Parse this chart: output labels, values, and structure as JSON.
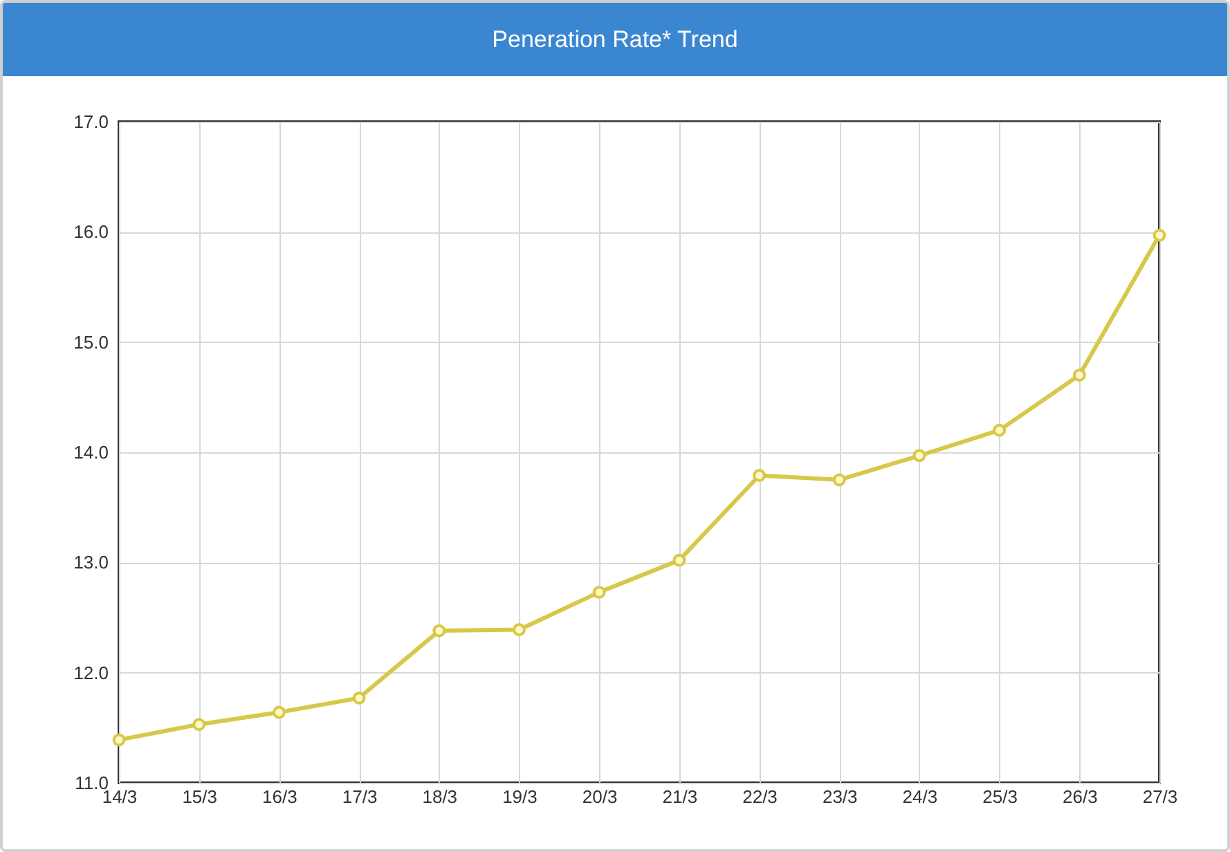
{
  "chart_data": {
    "type": "line",
    "title": "Peneration Rate* Trend",
    "categories": [
      "14/3",
      "15/3",
      "16/3",
      "17/3",
      "18/3",
      "19/3",
      "20/3",
      "21/3",
      "22/3",
      "23/3",
      "24/3",
      "25/3",
      "26/3",
      "27/3"
    ],
    "series": [
      {
        "color": "#d8c84a",
        "values": [
          11.39,
          11.53,
          11.64,
          11.77,
          12.38,
          12.39,
          12.73,
          13.02,
          13.79,
          13.75,
          13.97,
          14.2,
          14.7,
          15.97
        ]
      }
    ],
    "ylim": [
      11,
      17
    ],
    "yticks": [
      {
        "value": 11,
        "label": "11.0"
      },
      {
        "value": 12,
        "label": "12.0"
      },
      {
        "value": 13,
        "label": "13.0"
      },
      {
        "value": 14,
        "label": "14.0"
      },
      {
        "value": 15,
        "label": "15.0"
      },
      {
        "value": 16,
        "label": "16.0"
      },
      {
        "value": 17,
        "label": "17.0"
      }
    ],
    "grid": true,
    "marker": "circle"
  }
}
